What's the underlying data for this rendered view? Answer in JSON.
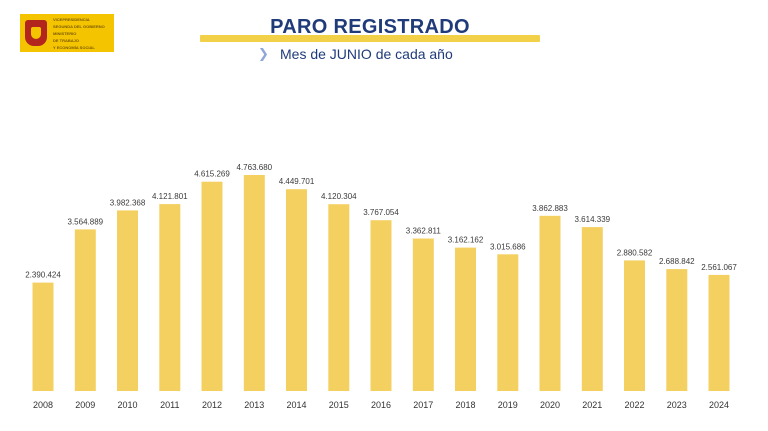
{
  "logo": {
    "lines": [
      "VICEPRESIDENCIA",
      "SEGUNDA DEL GOBIERNO",
      "MINISTERIO",
      "DE TRABAJO",
      "Y ECONOMÍA SOCIAL"
    ]
  },
  "header": {
    "title": "PARO REGISTRADO",
    "subtitle": "Mes de JUNIO de cada año"
  },
  "colors": {
    "bar": "#f4d061",
    "title": "#1f3b7a",
    "accent": "#f2d047"
  },
  "chart_data": {
    "type": "bar",
    "title": "PARO REGISTRADO",
    "subtitle": "Mes de JUNIO de cada año",
    "xlabel": "",
    "ylabel": "",
    "grid": false,
    "legend": "none",
    "ylim": [
      0,
      5000000
    ],
    "categories": [
      "2008",
      "2009",
      "2010",
      "2011",
      "2012",
      "2013",
      "2014",
      "2015",
      "2016",
      "2017",
      "2018",
      "2019",
      "2020",
      "2021",
      "2022",
      "2023",
      "2024"
    ],
    "values": [
      2390424,
      3564889,
      3982368,
      4121801,
      4615269,
      4763680,
      4449701,
      4120304,
      3767054,
      3362811,
      3162162,
      3015686,
      3862883,
      3614339,
      2880582,
      2688842,
      2561067
    ],
    "labels": [
      "2.390.424",
      "3.564.889",
      "3.982.368",
      "4.121.801",
      "4.615.269",
      "4.763.680",
      "4.449.701",
      "4.120.304",
      "3.767.054",
      "3.362.811",
      "3.162.162",
      "3.015.686",
      "3.862.883",
      "3.614.339",
      "2.880.582",
      "2.688.842",
      "2.561.067"
    ]
  }
}
